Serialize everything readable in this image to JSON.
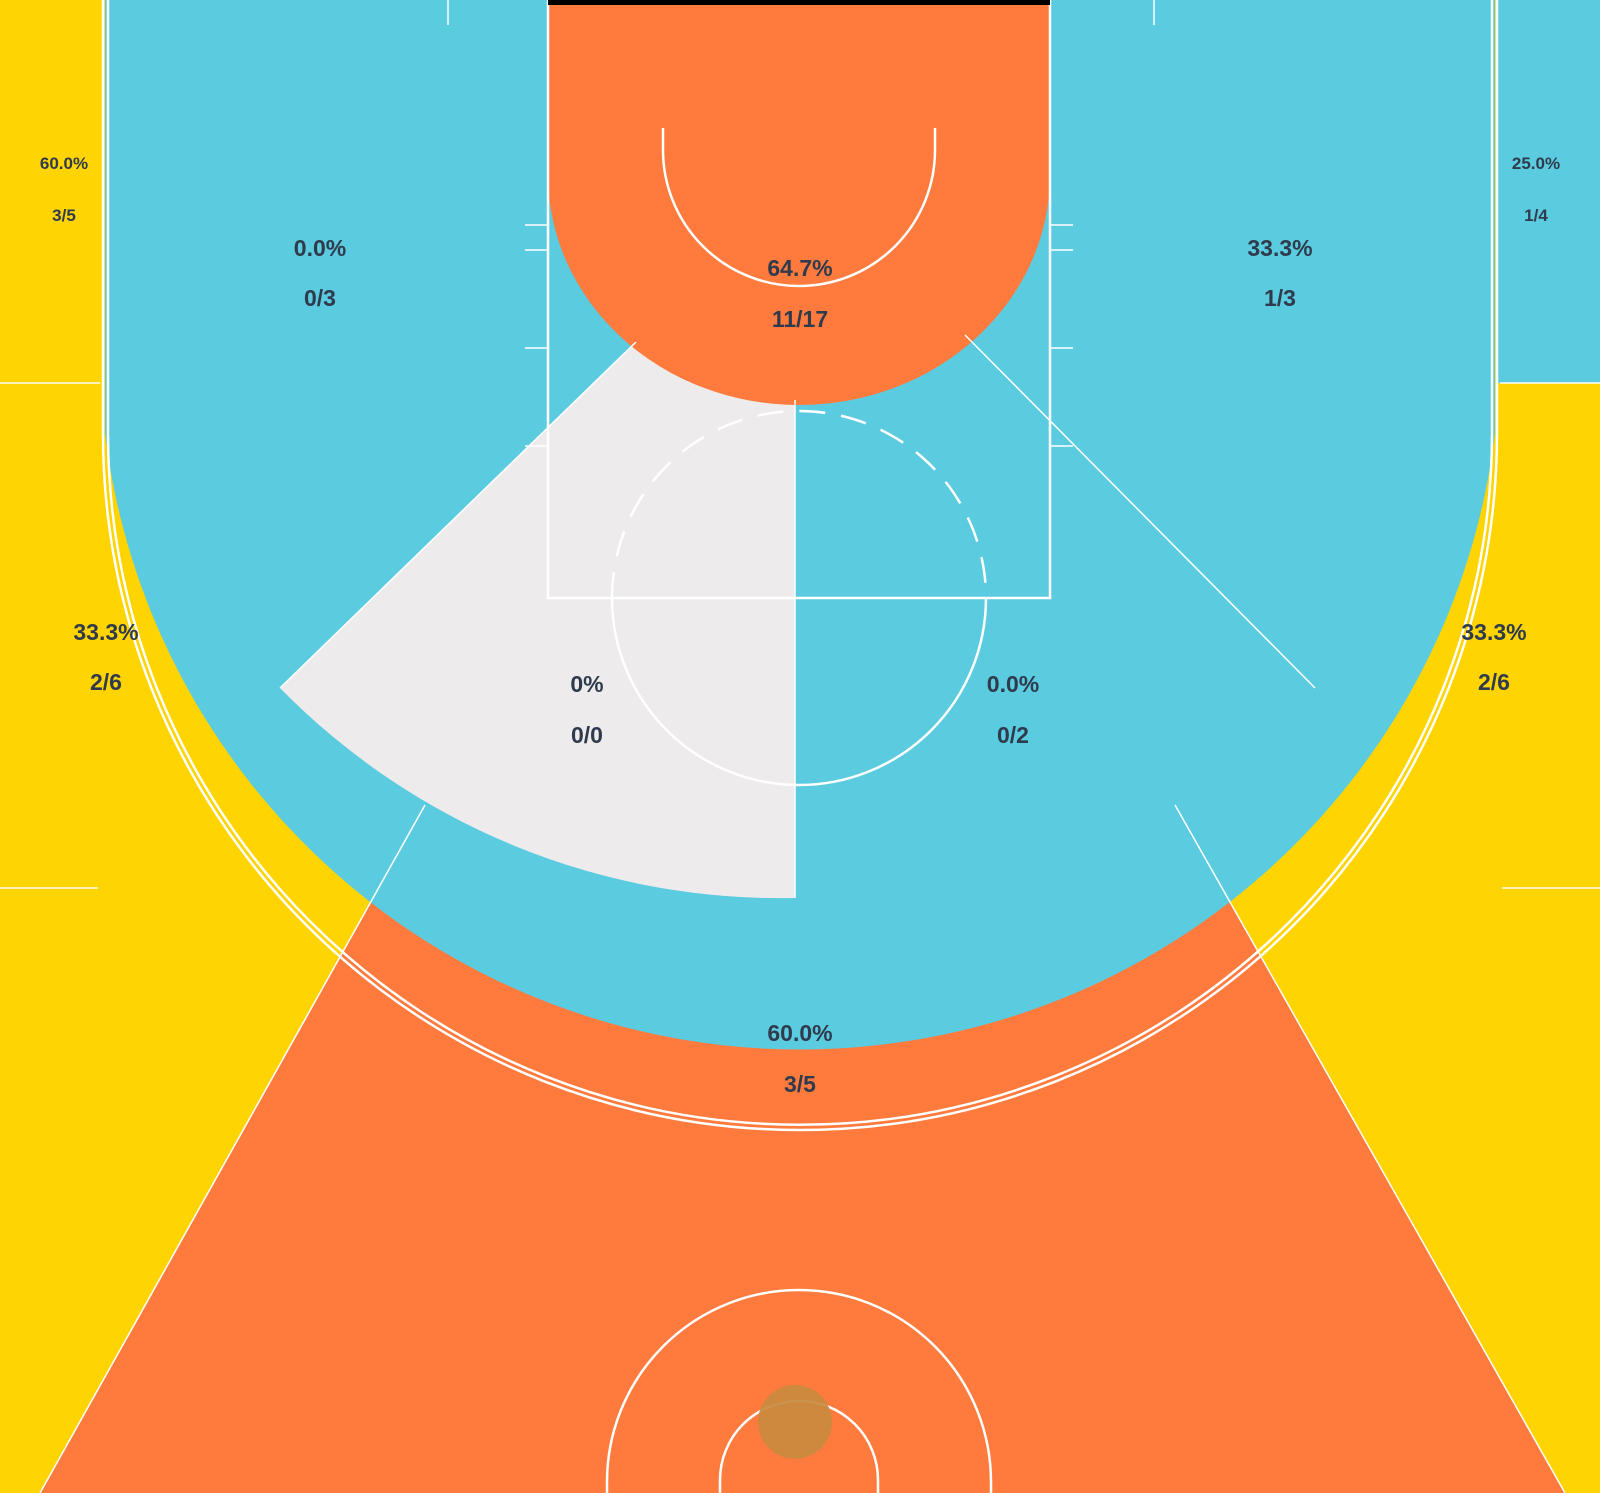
{
  "chart_data": {
    "type": "heatmap",
    "title": "",
    "colors": {
      "hot": "#ff7a3d",
      "neutral": "#ffd400",
      "cold": "#5bcbe0",
      "no_data": "#eeebec",
      "lines": "#ffffff",
      "text": "#2f3b4c",
      "background": "#000000"
    },
    "zones": [
      {
        "id": "restricted-area",
        "pct": "64.7%",
        "made_attempts": "11/17",
        "made": 11,
        "attempts": 17,
        "color": "hot"
      },
      {
        "id": "left-short-baseline",
        "pct": "0.0%",
        "made_attempts": "0/3",
        "made": 0,
        "attempts": 3,
        "color": "cold"
      },
      {
        "id": "right-short-baseline",
        "pct": "33.3%",
        "made_attempts": "1/3",
        "made": 1,
        "attempts": 3,
        "color": "cold"
      },
      {
        "id": "left-corner-three",
        "pct": "60.0%",
        "made_attempts": "3/5",
        "made": 3,
        "attempts": 5,
        "color": "neutral"
      },
      {
        "id": "right-corner-three",
        "pct": "25.0%",
        "made_attempts": "1/4",
        "made": 1,
        "attempts": 4,
        "color": "cold"
      },
      {
        "id": "left-midrange-center",
        "pct": "0%",
        "made_attempts": "0/0",
        "made": 0,
        "attempts": 0,
        "color": "no_data"
      },
      {
        "id": "right-midrange-center",
        "pct": "0.0%",
        "made_attempts": "0/2",
        "made": 0,
        "attempts": 2,
        "color": "cold"
      },
      {
        "id": "left-wing-three",
        "pct": "33.3%",
        "made_attempts": "2/6",
        "made": 2,
        "attempts": 6,
        "color": "neutral"
      },
      {
        "id": "right-wing-three",
        "pct": "33.3%",
        "made_attempts": "2/6",
        "made": 2,
        "attempts": 6,
        "color": "neutral"
      },
      {
        "id": "top-of-key-three",
        "pct": "60.0%",
        "made_attempts": "3/5",
        "made": 3,
        "attempts": 5,
        "color": "hot"
      }
    ]
  }
}
